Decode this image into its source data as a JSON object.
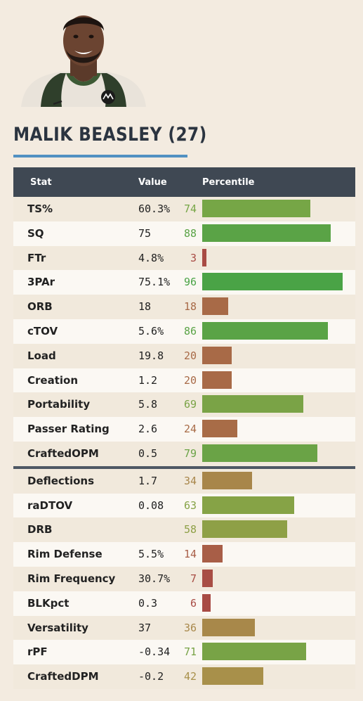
{
  "player": {
    "title": "MALIK BEASLEY (27)"
  },
  "table": {
    "headers": {
      "stat": "Stat",
      "value": "Value",
      "percentile": "Percentile"
    },
    "offense": [
      {
        "stat": "TS%",
        "value": "60.3%",
        "pct": 74,
        "color": "#76a646"
      },
      {
        "stat": "SQ",
        "value": "75",
        "pct": 88,
        "color": "#5aa346"
      },
      {
        "stat": "FTr",
        "value": "4.8%",
        "pct": 3,
        "color": "#a84b44"
      },
      {
        "stat": "3PAr",
        "value": "75.1%",
        "pct": 96,
        "color": "#4aa346"
      },
      {
        "stat": "ORB",
        "value": "18",
        "pct": 18,
        "color": "#a86a47"
      },
      {
        "stat": "cTOV",
        "value": "5.6%",
        "pct": 86,
        "color": "#5aa346"
      },
      {
        "stat": "Load",
        "value": "19.8",
        "pct": 20,
        "color": "#a86a47"
      },
      {
        "stat": "Creation",
        "value": "1.2",
        "pct": 20,
        "color": "#a86a47"
      },
      {
        "stat": "Portability",
        "value": "5.8",
        "pct": 69,
        "color": "#7aa346"
      },
      {
        "stat": "Passer Rating",
        "value": "2.6",
        "pct": 24,
        "color": "#a86c47"
      },
      {
        "stat": "CraftedOPM",
        "value": "0.5",
        "pct": 79,
        "color": "#6aa346"
      }
    ],
    "defense": [
      {
        "stat": "Deflections",
        "value": "1.7",
        "pct": 34,
        "color": "#a8864a"
      },
      {
        "stat": "raDTOV",
        "value": "0.08",
        "pct": 63,
        "color": "#86a346"
      },
      {
        "stat": "DRB",
        "value": "",
        "pct": 58,
        "color": "#8ea046"
      },
      {
        "stat": "Rim Defense",
        "value": "5.5%",
        "pct": 14,
        "color": "#a85e47"
      },
      {
        "stat": "Rim Frequency",
        "value": "30.7%",
        "pct": 7,
        "color": "#a84d44"
      },
      {
        "stat": "BLKpct",
        "value": "0.3",
        "pct": 6,
        "color": "#a84b44"
      },
      {
        "stat": "Versatility",
        "value": "37",
        "pct": 36,
        "color": "#a8884a"
      },
      {
        "stat": "rPF",
        "value": "-0.34",
        "pct": 71,
        "color": "#78a346"
      },
      {
        "stat": "CraftedDPM",
        "value": "-0.2",
        "pct": 42,
        "color": "#a8904a"
      }
    ]
  }
}
